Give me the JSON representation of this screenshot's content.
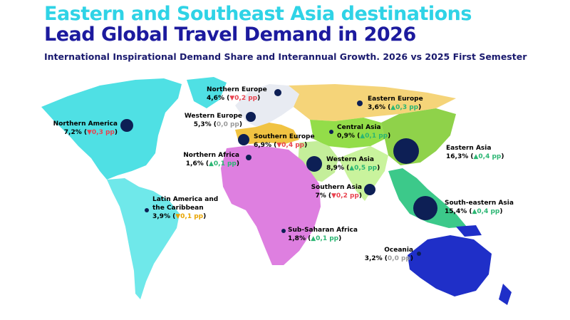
{
  "header": {
    "title_line1": "Eastern and Southeast Asia destinations",
    "title_line2": "Lead Global Travel Demand in 2026",
    "subtitle": "International Inspirational Demand Share and Interannual Growth. 2026 vs 2025 First Semester"
  },
  "colors": {
    "title_line1": "#2fd3e6",
    "title_line2": "#1c1a9e",
    "subtitle": "#1a1a6e",
    "bubble": "#0d1f55",
    "up": "#2bb673",
    "down": "#e8434f",
    "neutral": "#9a9a9a",
    "slight_down": "#e8a400",
    "north_america": "#4fe0e4",
    "latin_america": "#6fe8ea",
    "europe_north_west": "#e8ebf2",
    "eastern_europe": "#f5d479",
    "southern_europe": "#f1c342",
    "africa": "#de7fe0",
    "central_asia": "#93dd49",
    "western_asia": "#c4ee9a",
    "eastern_asia": "#8fd24a",
    "southern_asia": "#c9f39d",
    "southeast_asia": "#3cc98a",
    "oceania": "#1f2fc8"
  },
  "regions": [
    {
      "key": "northern_america",
      "name": "Northern America",
      "share": "7,2%",
      "direction": "down",
      "change": "0,3 pp"
    },
    {
      "key": "northern_europe",
      "name": "Northern Europe",
      "share": "4,6%",
      "direction": "down",
      "change": "0,2 pp"
    },
    {
      "key": "eastern_europe",
      "name": "Eastern Europe",
      "share": "3,6%",
      "direction": "up",
      "change": "0,3 pp"
    },
    {
      "key": "western_europe",
      "name": "Western Europe",
      "share": "5,3%",
      "direction": "flat",
      "change": "0,0 pp"
    },
    {
      "key": "central_asia",
      "name": "Central Asia",
      "share": "0,9%",
      "direction": "up",
      "change": "0,1 pp"
    },
    {
      "key": "southern_europe",
      "name": "Southern Europe",
      "share": "6,9%",
      "direction": "down",
      "change": "0,4 pp"
    },
    {
      "key": "eastern_asia",
      "name": "Eastern Asia",
      "share": "16,3%",
      "direction": "up",
      "change": "0,4 pp"
    },
    {
      "key": "northern_africa",
      "name": "Northern Africa",
      "share": "1,6%",
      "direction": "up",
      "change": "0,1 pp"
    },
    {
      "key": "western_asia",
      "name": "Western Asia",
      "share": "8,9%",
      "direction": "up",
      "change": "0,5 pp"
    },
    {
      "key": "southern_asia",
      "name": "Southern Asia",
      "share": "7%",
      "direction": "down",
      "change": "0,2 pp"
    },
    {
      "key": "latin_america",
      "name_line1": "Latin America and",
      "name_line2": "the Caribbean",
      "share": "3,9%",
      "direction": "slight_down",
      "change": "0,1 pp"
    },
    {
      "key": "south_eastern_asia",
      "name": "South-eastern Asia",
      "share": "15,4%",
      "direction": "up",
      "change": "0,4 pp"
    },
    {
      "key": "sub_saharan_africa",
      "name": "Sub-Saharan Africa",
      "share": "1,8%",
      "direction": "up",
      "change": "0,1 pp"
    },
    {
      "key": "oceania",
      "name": "Oceania",
      "share": "3,2%",
      "direction": "flat",
      "change": "0,0 pp"
    }
  ],
  "arrows": {
    "up": "▲",
    "down": "▼",
    "slight_down": "▼"
  }
}
